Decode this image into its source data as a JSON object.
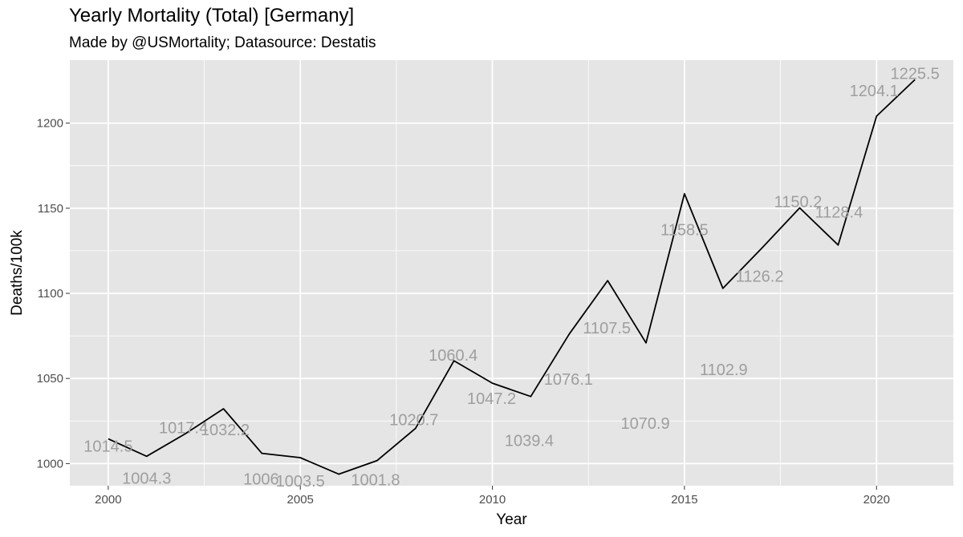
{
  "chart_data": {
    "type": "line",
    "title": "Yearly Mortality (Total) [Germany]",
    "subtitle": "Made by @USMortality; Datasource: Destatis",
    "xlabel": "Year",
    "ylabel": "Deaths/100k",
    "xlim": [
      1999,
      2022
    ],
    "ylim": [
      987,
      1237
    ],
    "x_ticks": [
      2000,
      2005,
      2010,
      2015,
      2020
    ],
    "y_ticks": [
      1000,
      1050,
      1100,
      1150,
      1200
    ],
    "grid": true,
    "colors": {
      "panel": "#e5e5e5",
      "grid": "#ffffff",
      "line": "#000000",
      "label": "#9e9e9e"
    },
    "series": [
      {
        "x": [
          2000,
          2001,
          2002,
          2003,
          2004,
          2005,
          2006,
          2007,
          2008,
          2009,
          2010,
          2011,
          2012,
          2013,
          2014,
          2015,
          2016,
          2017,
          2018,
          2019,
          2020,
          2021
        ],
        "values": [
          1014.5,
          1004.3,
          1017.4,
          1032.2,
          1006.0,
          1003.5,
          993.8,
          1001.8,
          1020.7,
          1060.4,
          1047.2,
          1039.4,
          1076.1,
          1107.5,
          1070.9,
          1158.5,
          1102.9,
          1126.2,
          1150.2,
          1128.4,
          1204.1,
          1225.5
        ]
      }
    ],
    "data_labels": [
      {
        "x": 2000,
        "text": "1014.5"
      },
      {
        "x": 2001,
        "text": "1004.3"
      },
      {
        "x": 2002,
        "text": "1017.4"
      },
      {
        "x": 2003,
        "text": "1032.2"
      },
      {
        "x": 2004,
        "text": "1006"
      },
      {
        "x": 2005,
        "text": "1003.5"
      },
      {
        "x": 2007,
        "text": "1001.8"
      },
      {
        "x": 2008,
        "text": "1020.7"
      },
      {
        "x": 2009,
        "text": "1060.4"
      },
      {
        "x": 2010,
        "text": "1047.2"
      },
      {
        "x": 2011,
        "text": "1039.4"
      },
      {
        "x": 2012,
        "text": "1076.1"
      },
      {
        "x": 2013,
        "text": "1107.5"
      },
      {
        "x": 2014,
        "text": "1070.9"
      },
      {
        "x": 2015,
        "text": "1158.5"
      },
      {
        "x": 2016,
        "text": "1102.9"
      },
      {
        "x": 2017,
        "text": "1126.2"
      },
      {
        "x": 2018,
        "text": "1150.2"
      },
      {
        "x": 2019,
        "text": "1128.4"
      },
      {
        "x": 2020,
        "text": "1204.1"
      },
      {
        "x": 2021,
        "text": "1225.5"
      }
    ]
  }
}
